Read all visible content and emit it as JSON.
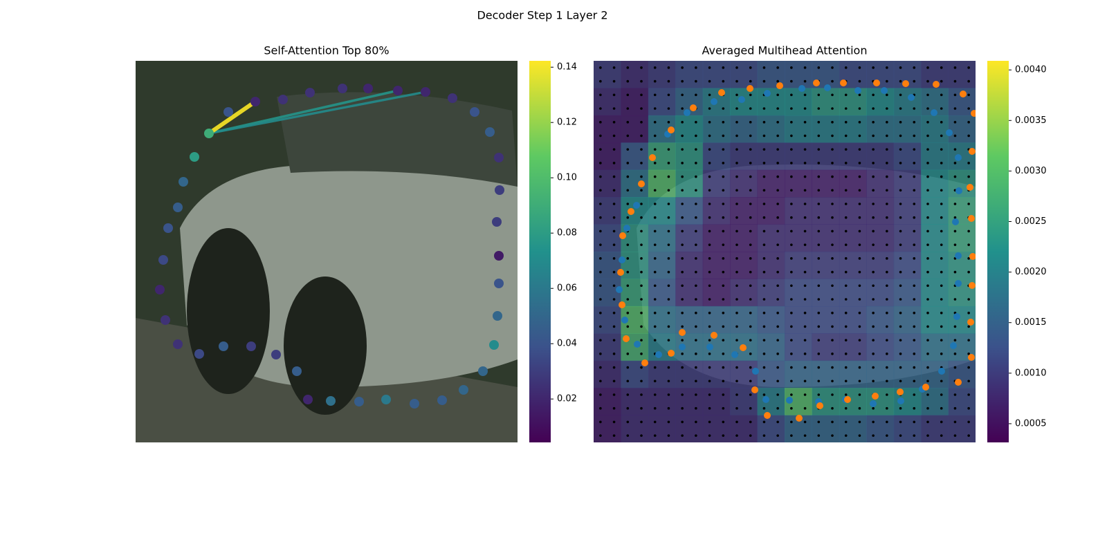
{
  "title": "Decoder Step 1 Layer 2",
  "chart_data": [
    {
      "type": "scatter",
      "title": "Self-Attention Top 80%",
      "colormap": "viridis",
      "x": [
        106,
        85,
        69,
        61,
        47,
        40,
        35,
        43,
        61,
        92,
        127,
        167,
        203,
        233,
        249,
        282,
        323,
        362,
        403,
        443,
        474,
        502,
        518,
        523,
        525,
        525,
        522,
        526,
        525,
        512,
        490,
        458,
        419,
        379,
        336,
        299,
        252,
        213,
        173,
        134
      ],
      "y": [
        105,
        139,
        175,
        212,
        242,
        288,
        331,
        375,
        410,
        424,
        413,
        413,
        425,
        449,
        490,
        492,
        493,
        490,
        496,
        491,
        476,
        449,
        411,
        369,
        322,
        282,
        233,
        187,
        140,
        103,
        74,
        54,
        45,
        43,
        40,
        40,
        46,
        56,
        59,
        74
      ],
      "values": [
        0.09,
        0.08,
        0.05,
        0.045,
        0.04,
        0.035,
        0.02,
        0.025,
        0.025,
        0.035,
        0.045,
        0.03,
        0.03,
        0.045,
        0.02,
        0.055,
        0.045,
        0.06,
        0.045,
        0.045,
        0.05,
        0.05,
        0.07,
        0.05,
        0.04,
        0.015,
        0.03,
        0.03,
        0.025,
        0.045,
        0.04,
        0.025,
        0.02,
        0.02,
        0.02,
        0.025,
        0.025,
        0.025,
        0.02,
        0.04
      ],
      "links": [
        {
          "to": 33,
          "value": 0.075
        },
        {
          "to": 32,
          "value": 0.07
        },
        {
          "to": 38,
          "value": 0.142
        }
      ],
      "clim": [
        0.0043,
        0.1423
      ],
      "cticks": [
        0.02,
        0.04,
        0.06,
        0.08,
        {
          "value": 0.1,
          "label": "0.10"
        },
        0.12,
        0.14
      ]
    },
    {
      "type": "heatmap",
      "title": "Averaged Multihead Attention",
      "colormap": "viridis",
      "values": [
        [
          0.001,
          0.0008,
          0.001,
          0.0012,
          0.0012,
          0.0012,
          0.0014,
          0.0014,
          0.0014,
          0.0012,
          0.0012,
          0.0012,
          0.001,
          0.001
        ],
        [
          0.0008,
          0.0006,
          0.0012,
          0.0016,
          0.002,
          0.0022,
          0.0022,
          0.0022,
          0.0024,
          0.0024,
          0.0022,
          0.002,
          0.0018,
          0.0014
        ],
        [
          0.0006,
          0.0006,
          0.0018,
          0.0022,
          0.0018,
          0.0016,
          0.0018,
          0.002,
          0.002,
          0.002,
          0.0018,
          0.0018,
          0.002,
          0.0016
        ],
        [
          0.0006,
          0.0014,
          0.0026,
          0.0024,
          0.0012,
          0.001,
          0.001,
          0.001,
          0.001,
          0.001,
          0.001,
          0.0012,
          0.002,
          0.002
        ],
        [
          0.0008,
          0.0018,
          0.003,
          0.0024,
          0.001,
          0.0008,
          0.0006,
          0.0006,
          0.0006,
          0.0006,
          0.0008,
          0.001,
          0.0022,
          0.0024
        ],
        [
          0.001,
          0.0022,
          0.0022,
          0.0014,
          0.0008,
          0.0006,
          0.0006,
          0.0008,
          0.0008,
          0.0008,
          0.0008,
          0.001,
          0.0022,
          0.0026
        ],
        [
          0.0012,
          0.0024,
          0.0018,
          0.001,
          0.0006,
          0.0006,
          0.0008,
          0.0008,
          0.0008,
          0.0008,
          0.0008,
          0.001,
          0.0022,
          0.0026
        ],
        [
          0.0014,
          0.0024,
          0.0016,
          0.0008,
          0.0006,
          0.0006,
          0.0008,
          0.001,
          0.001,
          0.001,
          0.001,
          0.0012,
          0.0022,
          0.0024
        ],
        [
          0.0014,
          0.0026,
          0.0014,
          0.0008,
          0.0006,
          0.0008,
          0.001,
          0.0012,
          0.0012,
          0.0012,
          0.0012,
          0.0014,
          0.0022,
          0.0024
        ],
        [
          0.0012,
          0.003,
          0.0018,
          0.0016,
          0.0016,
          0.0016,
          0.0014,
          0.0012,
          0.0012,
          0.0012,
          0.0014,
          0.0016,
          0.0022,
          0.0022
        ],
        [
          0.001,
          0.0028,
          0.002,
          0.0018,
          0.0018,
          0.0018,
          0.0016,
          0.0012,
          0.001,
          0.001,
          0.0012,
          0.0014,
          0.0018,
          0.0018
        ],
        [
          0.0008,
          0.0012,
          0.001,
          0.001,
          0.001,
          0.001,
          0.0014,
          0.0016,
          0.0016,
          0.0016,
          0.0016,
          0.0016,
          0.0016,
          0.0014
        ],
        [
          0.0006,
          0.0008,
          0.0008,
          0.0008,
          0.0008,
          0.001,
          0.002,
          0.003,
          0.0024,
          0.0024,
          0.0024,
          0.0022,
          0.0018,
          0.0012
        ],
        [
          0.0006,
          0.0008,
          0.0008,
          0.0008,
          0.0008,
          0.0008,
          0.0012,
          0.0016,
          0.0016,
          0.0016,
          0.0014,
          0.0012,
          0.001,
          0.001
        ]
      ],
      "series": [
        {
          "color": "#1f77b4",
          "x": [
            174,
            214,
            251,
            301,
            338,
            382,
            420,
            459,
            492,
            514,
            527,
            528,
            523,
            527,
            527,
            525,
            520,
            503,
            475,
            444,
            404,
            364,
            325,
            283,
            249,
            234,
            204,
            168,
            128,
            94,
            63,
            45,
            37,
            41,
            48,
            62,
            107,
            135
          ],
          "y": [
            59,
            56,
            47,
            40,
            39,
            43,
            43,
            53,
            75,
            104,
            140,
            188,
            233,
            282,
            322,
            370,
            412,
            449,
            475,
            492,
            496,
            490,
            493,
            491,
            490,
            449,
            425,
            414,
            414,
            425,
            410,
            375,
            331,
            288,
            242,
            209,
            106,
            75
          ]
        },
        {
          "color": "#ff7f0e",
          "x": [
            185,
            226,
            269,
            322,
            361,
            409,
            451,
            495,
            534,
            550,
            547,
            544,
            546,
            548,
            547,
            545,
            546,
            527,
            480,
            443,
            407,
            367,
            327,
            297,
            251,
            233,
            216,
            174,
            128,
            112,
            74,
            47,
            41,
            39,
            42,
            54,
            69,
            85,
            112,
            144
          ],
          "y": [
            46,
            40,
            36,
            32,
            32,
            32,
            33,
            34,
            48,
            76,
            131,
            183,
            228,
            283,
            325,
            378,
            429,
            465,
            472,
            479,
            485,
            490,
            499,
            517,
            513,
            476,
            415,
            397,
            393,
            423,
            437,
            402,
            353,
            306,
            253,
            218,
            178,
            140,
            100,
            68
          ]
        }
      ],
      "clim": [
        0.000315,
        0.00409
      ],
      "cticks": [
        0.0005,
        {
          "value": 0.001,
          "label": "0.0010"
        },
        0.0015,
        {
          "value": 0.002,
          "label": "0.0020"
        },
        0.0025,
        {
          "value": 0.003,
          "label": "0.0030"
        },
        0.0035,
        {
          "value": 0.004,
          "label": "0.0040"
        }
      ]
    }
  ]
}
